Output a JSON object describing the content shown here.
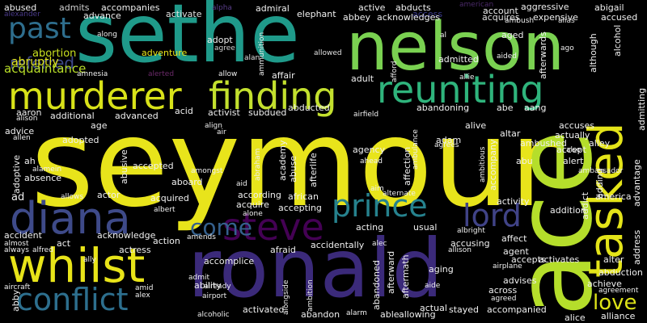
{
  "words": [
    {
      "text": "seymour",
      "color": "#e8e41b"
    },
    {
      "text": "sethe",
      "color": "#1f9a8a"
    },
    {
      "text": "nelson",
      "color": "#7ad151"
    },
    {
      "text": "ace",
      "color": "#b5de2b"
    },
    {
      "text": "ronald",
      "color": "#3b2a7a"
    },
    {
      "text": "murderer",
      "color": "#d8e219"
    },
    {
      "text": "finding",
      "color": "#c3e02e"
    },
    {
      "text": "reuniting",
      "color": "#2fb47c"
    },
    {
      "text": "tasked",
      "color": "#e4e419"
    },
    {
      "text": "diana",
      "color": "#3e4a89"
    },
    {
      "text": "whilst",
      "color": "#e8e419"
    },
    {
      "text": "steve",
      "color": "#440154"
    },
    {
      "text": "prince",
      "color": "#26828e"
    },
    {
      "text": "lord",
      "color": "#404387"
    },
    {
      "text": "conflict",
      "color": "#2d6f8e"
    },
    {
      "text": "past",
      "color": "#2e6e8e"
    },
    {
      "text": "come",
      "color": "#35608d"
    },
    {
      "text": "love",
      "color": "#dde318"
    },
    {
      "text": "referred",
      "color": "#3e4989"
    },
    {
      "text": "abruptly",
      "color": "#dfe318"
    },
    {
      "text": "acquaintance",
      "color": "#b8de29"
    },
    {
      "text": "abortion",
      "color": "#c8e020"
    },
    {
      "text": "abused",
      "color": "#f0f0f0"
    },
    {
      "text": "admits",
      "color": "#d0d0d0"
    },
    {
      "text": "accompanies",
      "color": "#f0f0f0"
    },
    {
      "text": "advance",
      "color": "#f0f0f0"
    },
    {
      "text": "activate",
      "color": "#e0e0e0"
    },
    {
      "text": "admiral",
      "color": "#f0f0f0"
    },
    {
      "text": "elephant",
      "color": "#f0f0f0"
    },
    {
      "text": "alpha",
      "color": "#5a3e8a"
    },
    {
      "text": "active",
      "color": "#f0f0f0"
    },
    {
      "text": "abducts",
      "color": "#f0f0f0"
    },
    {
      "text": "access",
      "color": "#3a3a8a"
    },
    {
      "text": "american",
      "color": "#4b2a6a"
    },
    {
      "text": "account",
      "color": "#f0f0f0"
    },
    {
      "text": "aggressive",
      "color": "#f0f0f0"
    },
    {
      "text": "abigail",
      "color": "#f0f0f0"
    },
    {
      "text": "acquires",
      "color": "#e0e0e0"
    },
    {
      "text": "expensive",
      "color": "#f0f0f0"
    },
    {
      "text": "accused",
      "color": "#f0f0f0"
    },
    {
      "text": "abbey",
      "color": "#f0f0f0"
    },
    {
      "text": "acknowledges",
      "color": "#f0f0f0"
    },
    {
      "text": "ambush",
      "color": "#f0f0f0"
    },
    {
      "text": "alias",
      "color": "#e0e0e0"
    },
    {
      "text": "alcohol",
      "color": "#f0f0f0"
    },
    {
      "text": "alexander",
      "color": "#4a3a8a"
    },
    {
      "text": "along",
      "color": "#f0f0f0"
    },
    {
      "text": "adopt",
      "color": "#f0f0f0"
    },
    {
      "text": "agree",
      "color": "#cfcfcf"
    },
    {
      "text": "alan",
      "color": "#e0e0e0"
    },
    {
      "text": "adventure",
      "color": "#e8e419"
    },
    {
      "text": "allowed",
      "color": "#e0e0e0"
    },
    {
      "text": "al",
      "color": "#f0f0f0"
    },
    {
      "text": "aged",
      "color": "#f0f0f0"
    },
    {
      "text": "aided",
      "color": "#f0f0f0"
    },
    {
      "text": "ago",
      "color": "#f0f0f0"
    },
    {
      "text": "afterwards",
      "color": "#f0f0f0"
    },
    {
      "text": "although",
      "color": "#f0f0f0"
    },
    {
      "text": "admitted",
      "color": "#f0f0f0"
    },
    {
      "text": "amnesia",
      "color": "#f0f0f0"
    },
    {
      "text": "alerted",
      "color": "#6b2a6a"
    },
    {
      "text": "allow",
      "color": "#f0f0f0"
    },
    {
      "text": "affair",
      "color": "#f0f0f0"
    },
    {
      "text": "ammunition",
      "color": "#f0f0f0"
    },
    {
      "text": "adult",
      "color": "#f0f0f0"
    },
    {
      "text": "afford",
      "color": "#f0f0f0"
    },
    {
      "text": "allie",
      "color": "#f0f0f0"
    },
    {
      "text": "aaron",
      "color": "#f0f0f0"
    },
    {
      "text": "alison",
      "color": "#f0f0f0"
    },
    {
      "text": "additional",
      "color": "#f0f0f0"
    },
    {
      "text": "advanced",
      "color": "#f0f0f0"
    },
    {
      "text": "acid",
      "color": "#f0f0f0"
    },
    {
      "text": "activist",
      "color": "#f0f0f0"
    },
    {
      "text": "subdued",
      "color": "#f0f0f0"
    },
    {
      "text": "abducted",
      "color": "#f0f0f0"
    },
    {
      "text": "abandoning",
      "color": "#f0f0f0"
    },
    {
      "text": "abe",
      "color": "#f0f0f0"
    },
    {
      "text": "aang",
      "color": "#f0f0f0"
    },
    {
      "text": "airfield",
      "color": "#f0f0f0"
    },
    {
      "text": "advice",
      "color": "#f0f0f0"
    },
    {
      "text": "allen",
      "color": "#f0f0f0"
    },
    {
      "text": "age",
      "color": "#f0f0f0"
    },
    {
      "text": "align",
      "color": "#f0f0f0"
    },
    {
      "text": "air",
      "color": "#f0f0f0"
    },
    {
      "text": "accuses",
      "color": "#f0f0f0"
    },
    {
      "text": "actually",
      "color": "#f0f0f0"
    },
    {
      "text": "alive",
      "color": "#f0f0f0"
    },
    {
      "text": "altar",
      "color": "#f0f0f0"
    },
    {
      "text": "ambushed",
      "color": "#f0f0f0"
    },
    {
      "text": "alley",
      "color": "#f0f0f0"
    },
    {
      "text": "accept",
      "color": "#f0f0f0"
    },
    {
      "text": "also",
      "color": "#f0f0f0"
    },
    {
      "text": "adam",
      "color": "#f0f0f0"
    },
    {
      "text": "agrees",
      "color": "#f0f0f0"
    },
    {
      "text": "ambitious",
      "color": "#f0f0f0"
    },
    {
      "text": "accompany",
      "color": "#f0f0f0"
    },
    {
      "text": "abu",
      "color": "#f0f0f0"
    },
    {
      "text": "alert",
      "color": "#f0f0f0"
    },
    {
      "text": "ambassador",
      "color": "#f0f0f0"
    },
    {
      "text": "admitting",
      "color": "#f0f0f0"
    },
    {
      "text": "adopted",
      "color": "#f0f0f0"
    },
    {
      "text": "ah",
      "color": "#f0f0f0"
    },
    {
      "text": "alamein",
      "color": "#f0f0f0"
    },
    {
      "text": "accepted",
      "color": "#f0f0f0"
    },
    {
      "text": "abraham",
      "color": "#f0f0f0"
    },
    {
      "text": "afterlife",
      "color": "#f0f0f0"
    },
    {
      "text": "affection",
      "color": "#f0f0f0"
    },
    {
      "text": "ambulance",
      "color": "#f0f0f0"
    },
    {
      "text": "agency",
      "color": "#f0f0f0"
    },
    {
      "text": "ahead",
      "color": "#f0f0f0"
    },
    {
      "text": "adoptive",
      "color": "#f0f0f0"
    },
    {
      "text": "absence",
      "color": "#f0f0f0"
    },
    {
      "text": "abusive",
      "color": "#f0f0f0"
    },
    {
      "text": "aboard",
      "color": "#f0f0f0"
    },
    {
      "text": "amongst",
      "color": "#f0f0f0"
    },
    {
      "text": "academy",
      "color": "#f0f0f0"
    },
    {
      "text": "abuse",
      "color": "#f0f0f0"
    },
    {
      "text": "aim",
      "color": "#f0f0f0"
    },
    {
      "text": "aid",
      "color": "#f0f0f0"
    },
    {
      "text": "adding",
      "color": "#f0f0f0"
    },
    {
      "text": "advantage",
      "color": "#f0f0f0"
    },
    {
      "text": "address",
      "color": "#f0f0f0"
    },
    {
      "text": "america",
      "color": "#f0f0f0"
    },
    {
      "text": "alternate",
      "color": "#f0f0f0"
    },
    {
      "text": "ad",
      "color": "#f0f0f0"
    },
    {
      "text": "allows",
      "color": "#f0f0f0"
    },
    {
      "text": "actor",
      "color": "#f0f0f0"
    },
    {
      "text": "acquired",
      "color": "#f0f0f0"
    },
    {
      "text": "according",
      "color": "#f0f0f0"
    },
    {
      "text": "african",
      "color": "#f0f0f0"
    },
    {
      "text": "activity",
      "color": "#f0f0f0"
    },
    {
      "text": "agent",
      "color": "#f0f0f0"
    },
    {
      "text": "addict",
      "color": "#f0f0f0"
    },
    {
      "text": "acquire",
      "color": "#f0f0f0"
    },
    {
      "text": "accepting",
      "color": "#f0f0f0"
    },
    {
      "text": "addition",
      "color": "#f0f0f0"
    },
    {
      "text": "albert",
      "color": "#f0f0f0"
    },
    {
      "text": "alone",
      "color": "#f0f0f0"
    },
    {
      "text": "acting",
      "color": "#f0f0f0"
    },
    {
      "text": "accident",
      "color": "#f0f0f0"
    },
    {
      "text": "acknowledge",
      "color": "#f0f0f0"
    },
    {
      "text": "usual",
      "color": "#f0f0f0"
    },
    {
      "text": "albright",
      "color": "#f0f0f0"
    },
    {
      "text": "affect",
      "color": "#f0f0f0"
    },
    {
      "text": "almost",
      "color": "#f0f0f0"
    },
    {
      "text": "act",
      "color": "#f0f0f0"
    },
    {
      "text": "action",
      "color": "#f0f0f0"
    },
    {
      "text": "amends",
      "color": "#f0f0f0"
    },
    {
      "text": "afraid",
      "color": "#f0f0f0"
    },
    {
      "text": "accidentally",
      "color": "#f0f0f0"
    },
    {
      "text": "accusing",
      "color": "#f0f0f0"
    },
    {
      "text": "ability",
      "color": "#f0f0f0"
    },
    {
      "text": "always",
      "color": "#f0f0f0"
    },
    {
      "text": "alfred",
      "color": "#f0f0f0"
    },
    {
      "text": "actress",
      "color": "#f0f0f0"
    },
    {
      "text": "accomplice",
      "color": "#f0f0f0"
    },
    {
      "text": "alec",
      "color": "#f0f0f0"
    },
    {
      "text": "allison",
      "color": "#f0f0f0"
    },
    {
      "text": "accepts",
      "color": "#f0f0f0"
    },
    {
      "text": "activates",
      "color": "#f0f0f0"
    },
    {
      "text": "alter",
      "color": "#f0f0f0"
    },
    {
      "text": "ally",
      "color": "#f0f0f0"
    },
    {
      "text": "admit",
      "color": "#f0f0f0"
    },
    {
      "text": "afterward",
      "color": "#f0f0f0"
    },
    {
      "text": "abandoned",
      "color": "#f0f0f0"
    },
    {
      "text": "aftermath",
      "color": "#f0f0f0"
    },
    {
      "text": "aging",
      "color": "#f0f0f0"
    },
    {
      "text": "airplane",
      "color": "#f0f0f0"
    },
    {
      "text": "abduction",
      "color": "#f0f0f0"
    },
    {
      "text": "achieve",
      "color": "#f0f0f0"
    },
    {
      "text": "agreement",
      "color": "#f0f0f0"
    },
    {
      "text": "aircraft",
      "color": "#f0f0f0"
    },
    {
      "text": "amid",
      "color": "#f0f0f0"
    },
    {
      "text": "already",
      "color": "#f0f0f0"
    },
    {
      "text": "alongside",
      "color": "#f0f0f0"
    },
    {
      "text": "ambition",
      "color": "#f0f0f0"
    },
    {
      "text": "aide",
      "color": "#f0f0f0"
    },
    {
      "text": "advises",
      "color": "#f0f0f0"
    },
    {
      "text": "across",
      "color": "#f0f0f0"
    },
    {
      "text": "agreed",
      "color": "#f0f0f0"
    },
    {
      "text": "abby",
      "color": "#f0f0f0"
    },
    {
      "text": "alex",
      "color": "#f0f0f0"
    },
    {
      "text": "airport",
      "color": "#f0f0f0"
    },
    {
      "text": "alcoholic",
      "color": "#f0f0f0"
    },
    {
      "text": "activated",
      "color": "#f0f0f0"
    },
    {
      "text": "abandon",
      "color": "#f0f0f0"
    },
    {
      "text": "alarm",
      "color": "#f0f0f0"
    },
    {
      "text": "able",
      "color": "#f0f0f0"
    },
    {
      "text": "allowing",
      "color": "#f0f0f0"
    },
    {
      "text": "actual",
      "color": "#f0f0f0"
    },
    {
      "text": "stayed",
      "color": "#f0f0f0"
    },
    {
      "text": "accompanied",
      "color": "#f0f0f0"
    },
    {
      "text": "alice",
      "color": "#f0f0f0"
    },
    {
      "text": "alliance",
      "color": "#f0f0f0"
    }
  ]
}
